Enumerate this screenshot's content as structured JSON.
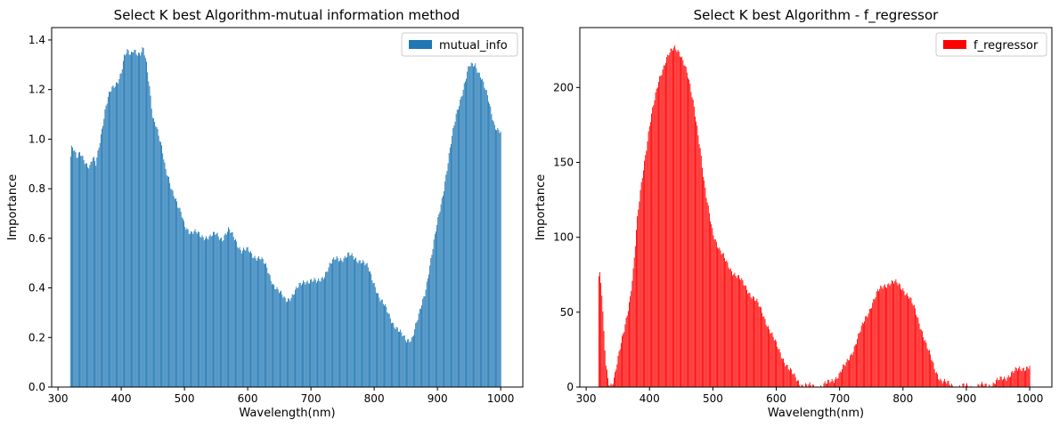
{
  "chart_data": [
    {
      "type": "bar",
      "title": "Select K best Algorithm-mutual information method",
      "xlabel": "Wavelength(nm)",
      "ylabel": "Importance",
      "xlim": [
        290,
        1035
      ],
      "ylim": [
        0,
        1.45
      ],
      "xticks": [
        300,
        400,
        500,
        600,
        700,
        800,
        900,
        1000
      ],
      "yticks": [
        0.0,
        0.2,
        0.4,
        0.6,
        0.8,
        1.0,
        1.2,
        1.4
      ],
      "ytick_decimals": 1,
      "x_range": [
        320,
        1000
      ],
      "bar_step": 1.6,
      "series": [
        {
          "name": "mutual_info",
          "color": "#1f77b4",
          "profile_x": [
            320,
            322,
            330,
            335,
            340,
            345,
            350,
            355,
            360,
            365,
            370,
            375,
            380,
            385,
            390,
            395,
            400,
            405,
            410,
            415,
            420,
            425,
            430,
            435,
            440,
            445,
            450,
            455,
            460,
            465,
            470,
            475,
            480,
            485,
            490,
            495,
            500,
            505,
            510,
            520,
            530,
            540,
            550,
            560,
            570,
            580,
            590,
            600,
            610,
            620,
            630,
            640,
            650,
            660,
            670,
            680,
            690,
            700,
            710,
            720,
            730,
            740,
            750,
            760,
            770,
            780,
            790,
            800,
            810,
            820,
            830,
            840,
            850,
            860,
            870,
            880,
            890,
            900,
            910,
            920,
            930,
            940,
            950,
            960,
            970,
            980,
            990,
            1000
          ],
          "profile_y": [
            0.93,
            0.97,
            0.92,
            0.95,
            0.93,
            0.9,
            0.88,
            0.92,
            0.9,
            0.98,
            1.05,
            1.12,
            1.17,
            1.2,
            1.22,
            1.24,
            1.27,
            1.33,
            1.35,
            1.34,
            1.37,
            1.35,
            1.34,
            1.36,
            1.3,
            1.21,
            1.09,
            1.06,
            1.0,
            0.95,
            0.88,
            0.85,
            0.8,
            0.76,
            0.72,
            0.7,
            0.66,
            0.64,
            0.62,
            0.62,
            0.61,
            0.6,
            0.62,
            0.6,
            0.63,
            0.6,
            0.55,
            0.55,
            0.53,
            0.52,
            0.48,
            0.42,
            0.38,
            0.35,
            0.37,
            0.4,
            0.43,
            0.43,
            0.42,
            0.45,
            0.49,
            0.52,
            0.52,
            0.53,
            0.52,
            0.51,
            0.48,
            0.42,
            0.35,
            0.31,
            0.26,
            0.22,
            0.19,
            0.2,
            0.28,
            0.38,
            0.52,
            0.66,
            0.8,
            0.96,
            1.1,
            1.2,
            1.29,
            1.3,
            1.25,
            1.16,
            1.06,
            1.03
          ]
        }
      ],
      "legend": "top-right"
    },
    {
      "type": "bar",
      "title": "Select K best Algorithm - f_regressor",
      "xlabel": "Wavelength(nm)",
      "ylabel": "Importance",
      "xlim": [
        290,
        1035
      ],
      "ylim": [
        0,
        240
      ],
      "xticks": [
        300,
        400,
        500,
        600,
        700,
        800,
        900,
        1000
      ],
      "yticks": [
        0,
        50,
        100,
        150,
        200
      ],
      "ytick_decimals": 0,
      "x_range": [
        320,
        1000
      ],
      "bar_step": 1.6,
      "series": [
        {
          "name": "f_regressor",
          "color": "#ff0000",
          "profile_x": [
            320,
            322,
            325,
            328,
            331,
            335,
            338,
            341,
            345,
            350,
            355,
            360,
            365,
            370,
            375,
            380,
            385,
            390,
            395,
            400,
            405,
            410,
            415,
            420,
            425,
            430,
            435,
            440,
            445,
            450,
            455,
            460,
            465,
            470,
            475,
            480,
            485,
            490,
            495,
            500,
            510,
            520,
            530,
            540,
            550,
            560,
            570,
            580,
            590,
            600,
            610,
            620,
            630,
            640,
            650,
            660,
            670,
            680,
            690,
            700,
            710,
            720,
            730,
            740,
            750,
            760,
            770,
            780,
            790,
            800,
            810,
            820,
            830,
            840,
            850,
            860,
            870,
            880,
            890,
            900,
            910,
            920,
            930,
            940,
            950,
            960,
            970,
            980,
            990,
            1000
          ],
          "profile_y": [
            74,
            75,
            60,
            35,
            15,
            4,
            2,
            3,
            8,
            18,
            28,
            38,
            50,
            62,
            80,
            108,
            128,
            145,
            160,
            175,
            185,
            195,
            205,
            212,
            218,
            222,
            224,
            226,
            225,
            222,
            216,
            208,
            198,
            188,
            175,
            160,
            140,
            125,
            114,
            104,
            92,
            84,
            78,
            73,
            68,
            62,
            56,
            48,
            38,
            28,
            20,
            12,
            6,
            2,
            0.5,
            0.2,
            0.5,
            2,
            5,
            9,
            15,
            24,
            34,
            45,
            55,
            63,
            68,
            70,
            69,
            66,
            60,
            50,
            38,
            24,
            12,
            5,
            2,
            0.5,
            0.2,
            0.2,
            0.3,
            0.5,
            1,
            2,
            4,
            6,
            9,
            11,
            13,
            14
          ]
        }
      ],
      "legend": "top-right"
    }
  ]
}
